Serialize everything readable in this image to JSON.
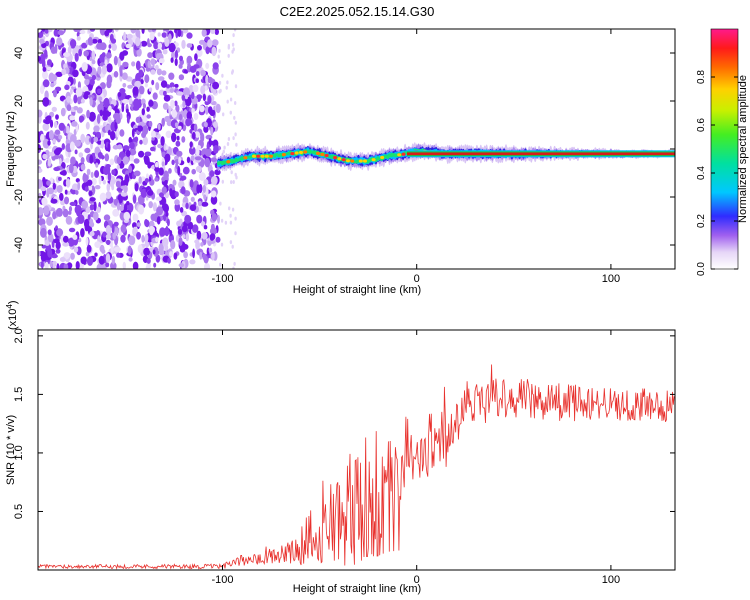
{
  "title": "C2E2.2025.052.15.14.G30",
  "colors": {
    "snr_line": "#e8312d",
    "axes": "#000000",
    "background": "#ffffff",
    "noise_dark": "#7b1fe8",
    "noise_light": "#d8c4f5",
    "signal_line": "#d81b1b"
  },
  "chart_data": [
    {
      "id": "spectrogram",
      "type": "heatmap",
      "title": "C2E2.2025.052.15.14.G30",
      "xlabel": "Height of straight line (km)",
      "ylabel": "Frequency (Hz)",
      "xlim": [
        -195,
        133
      ],
      "ylim": [
        -50,
        50
      ],
      "x_ticks": [
        -100,
        0,
        100
      ],
      "x_tick_labels": [
        "-100",
        "0",
        "100"
      ],
      "y_ticks": [
        -40,
        -20,
        0,
        20,
        40
      ],
      "y_tick_labels": [
        "-40",
        "-20",
        "0",
        "20",
        "40"
      ],
      "noise_region_x": [
        -195,
        -102
      ],
      "signal_start_x": -102,
      "ridge": {
        "x": [
          -102,
          -95,
          -85,
          -75,
          -65,
          -55,
          -45,
          -35,
          -25,
          -15,
          -5,
          0,
          5,
          15,
          30,
          50,
          80,
          110,
          133
        ],
        "freq": [
          -6,
          -5,
          -3,
          -3,
          -2,
          -1,
          -3,
          -5,
          -5,
          -3,
          -2,
          -1,
          -1,
          -2,
          -2,
          -2,
          -2,
          -2,
          -2
        ]
      },
      "colorbar": {
        "label": "Normalized spectral amplitude",
        "range": [
          0.0,
          1.0
        ],
        "ticks": [
          0.0,
          0.2,
          0.4,
          0.6,
          0.8
        ],
        "tick_labels": [
          "0.0",
          "0.2",
          "0.4",
          "0.6",
          "0.8"
        ],
        "colormap": "rainbow"
      }
    },
    {
      "id": "snr",
      "type": "line",
      "xlabel": "Height of straight line (km)",
      "ylabel": "SNR (10 * v/v)",
      "y_multiplier": "(x10^4)",
      "xlim": [
        -195,
        133
      ],
      "ylim": [
        0,
        20500
      ],
      "x_ticks": [
        -100,
        0,
        100
      ],
      "x_tick_labels": [
        "-100",
        "0",
        "100"
      ],
      "y_ticks": [
        5000,
        10000,
        15000,
        20000
      ],
      "y_tick_labels": [
        "0.5",
        "1.0",
        "1.5",
        "2.0"
      ],
      "series": [
        {
          "name": "SNR",
          "envelope_x": [
            -195,
            -100,
            -90,
            -80,
            -70,
            -60,
            -50,
            -45,
            -40,
            -35,
            -30,
            -25,
            -20,
            -15,
            -10,
            -5,
            0,
            5,
            10,
            15,
            20,
            25,
            30,
            35,
            40,
            50,
            60,
            80,
            100,
            120,
            133
          ],
          "envelope_mean": [
            300,
            300,
            800,
            1300,
            1300,
            1600,
            2500,
            3800,
            4200,
            5000,
            5200,
            5800,
            6000,
            7800,
            8200,
            9000,
            9500,
            9500,
            10500,
            11000,
            12500,
            13500,
            14000,
            14500,
            15000,
            14800,
            14500,
            14300,
            14200,
            14000,
            14000
          ],
          "envelope_amp": [
            150,
            200,
            500,
            800,
            900,
            1200,
            2000,
            3500,
            4000,
            5000,
            4500,
            4800,
            4500,
            3800,
            2800,
            2500,
            1800,
            1800,
            2200,
            2500,
            2200,
            2100,
            2100,
            2000,
            2000,
            1800,
            1700,
            1600,
            1500,
            1500,
            1500
          ]
        }
      ]
    }
  ]
}
